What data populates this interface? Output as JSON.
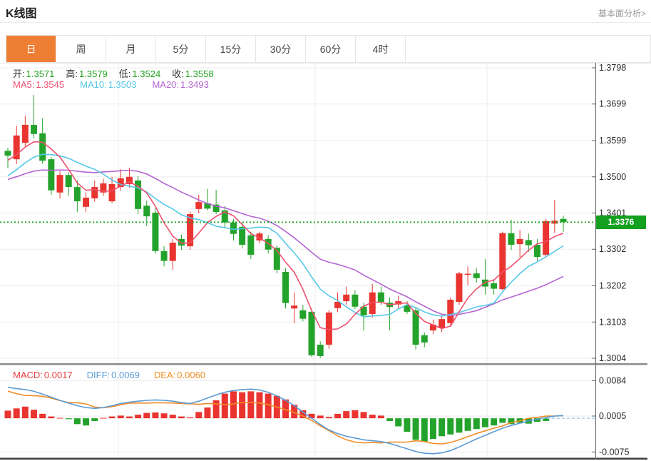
{
  "header": {
    "title": "K线图",
    "link": "基本面分析>"
  },
  "tabs": {
    "active_bg": "#ee7e33",
    "items": [
      {
        "name": "day",
        "label": "日",
        "active": true
      },
      {
        "name": "week",
        "label": "周",
        "active": false
      },
      {
        "name": "month",
        "label": "月",
        "active": false
      },
      {
        "name": "5min",
        "label": "5分",
        "active": false
      },
      {
        "name": "15min",
        "label": "15分",
        "active": false
      },
      {
        "name": "30min",
        "label": "30分",
        "active": false
      },
      {
        "name": "60min",
        "label": "60分",
        "active": false
      },
      {
        "name": "4hour",
        "label": "4时",
        "active": false
      }
    ]
  },
  "overlay": {
    "ohlc_value_color": "#21a21f",
    "ohlc": [
      {
        "label": "开:",
        "value": "1.3571"
      },
      {
        "label": "高:",
        "value": "1.3579"
      },
      {
        "label": "低:",
        "value": "1.3524"
      },
      {
        "label": "收:",
        "value": "1.3558"
      }
    ],
    "ma": [
      {
        "label": "MA5:",
        "value": "1.3545",
        "color": "#f0506e"
      },
      {
        "label": "MA10:",
        "value": "1.3503",
        "color": "#56c8e8"
      },
      {
        "label": "MA20:",
        "value": "1.3493",
        "color": "#b464d2"
      }
    ],
    "macd": [
      {
        "label": "MACD:",
        "value": "0.0017",
        "color": "#e84040"
      },
      {
        "label": "DIFF:",
        "value": "0.0069",
        "color": "#5b9bd5"
      },
      {
        "label": "DEA:",
        "value": "0.0060",
        "color": "#f08c28"
      }
    ]
  },
  "last_price": {
    "value": "1.3376",
    "bg": "#13a01f"
  },
  "chart_data": {
    "type": "candlestick+macd",
    "price_axis": {
      "ticks": [
        "1.3798",
        "1.3699",
        "1.3599",
        "1.3500",
        "1.3401",
        "1.3302",
        "1.3202",
        "1.3103",
        "1.3004"
      ]
    },
    "macd_axis": {
      "ticks": [
        "0.0084",
        "0.0005",
        "-0.0075"
      ]
    },
    "colors": {
      "up": "#e93430",
      "down": "#23a32b",
      "ma5": "#f0506e",
      "ma10": "#56c8e8",
      "ma20": "#b464d2",
      "diff": "#5b9bd5",
      "dea": "#f08c28",
      "price_line": "#2aa82a",
      "grid": "#ededed",
      "axis": "#666666",
      "zero_dash": "#a9cfe8"
    },
    "candles": [
      [
        1.3571,
        1.3579,
        1.3524,
        1.3558
      ],
      [
        1.3548,
        1.364,
        1.3535,
        1.3613
      ],
      [
        1.3593,
        1.3667,
        1.3583,
        1.3642
      ],
      [
        1.3642,
        1.3724,
        1.3605,
        1.3617
      ],
      [
        1.3619,
        1.366,
        1.3535,
        1.3544
      ],
      [
        1.3548,
        1.3554,
        1.3451,
        1.3463
      ],
      [
        1.3457,
        1.3515,
        1.3441,
        1.3505
      ],
      [
        1.3505,
        1.3512,
        1.3448,
        1.3472
      ],
      [
        1.3472,
        1.349,
        1.3404,
        1.3433
      ],
      [
        1.3418,
        1.3457,
        1.3404,
        1.3443
      ],
      [
        1.3441,
        1.349,
        1.3432,
        1.3472
      ],
      [
        1.3457,
        1.3495,
        1.3448,
        1.3482
      ],
      [
        1.3433,
        1.35,
        1.3428,
        1.348
      ],
      [
        1.3472,
        1.3521,
        1.3462,
        1.3496
      ],
      [
        1.348,
        1.3525,
        1.347,
        1.35
      ],
      [
        1.349,
        1.3502,
        1.3398,
        1.3412
      ],
      [
        1.3421,
        1.3435,
        1.3365,
        1.3392
      ],
      [
        1.3402,
        1.3415,
        1.329,
        1.3297
      ],
      [
        1.3297,
        1.331,
        1.3255,
        1.327
      ],
      [
        1.327,
        1.333,
        1.3246,
        1.332
      ],
      [
        1.333,
        1.3342,
        1.33,
        1.3312
      ],
      [
        1.331,
        1.3405,
        1.33,
        1.3398
      ],
      [
        1.3412,
        1.3451,
        1.34,
        1.3431
      ],
      [
        1.3428,
        1.3467,
        1.3408,
        1.3413
      ],
      [
        1.3424,
        1.3464,
        1.3398,
        1.3404
      ],
      [
        1.3408,
        1.342,
        1.3359,
        1.3375
      ],
      [
        1.3375,
        1.3385,
        1.3326,
        1.3344
      ],
      [
        1.3363,
        1.3375,
        1.3305,
        1.3314
      ],
      [
        1.334,
        1.335,
        1.3275,
        1.3287
      ],
      [
        1.3326,
        1.335,
        1.3318,
        1.3345
      ],
      [
        1.333,
        1.334,
        1.329,
        1.3301
      ],
      [
        1.3306,
        1.3312,
        1.3236,
        1.3246
      ],
      [
        1.324,
        1.325,
        1.314,
        1.3155
      ],
      [
        1.314,
        1.3184,
        1.31,
        1.3148
      ],
      [
        1.3135,
        1.315,
        1.3105,
        1.3112
      ],
      [
        1.3131,
        1.314,
        1.3008,
        1.3012
      ],
      [
        1.3041,
        1.305,
        1.3005,
        1.301
      ],
      [
        1.3041,
        1.3135,
        1.303,
        1.3129
      ],
      [
        1.3141,
        1.3184,
        1.313,
        1.3158
      ],
      [
        1.316,
        1.32,
        1.315,
        1.3178
      ],
      [
        1.3178,
        1.319,
        1.3138,
        1.3145
      ],
      [
        1.3145,
        1.3155,
        1.308,
        1.3121
      ],
      [
        1.3125,
        1.3207,
        1.3115,
        1.3184
      ],
      [
        1.3184,
        1.32,
        1.315,
        1.3158
      ],
      [
        1.3156,
        1.317,
        1.308,
        1.3144
      ],
      [
        1.3151,
        1.3175,
        1.314,
        1.316
      ],
      [
        1.3149,
        1.316,
        1.3125,
        1.3131
      ],
      [
        1.3135,
        1.3145,
        1.3028,
        1.3041
      ],
      [
        1.3067,
        1.3075,
        1.3034,
        1.3047
      ],
      [
        1.308,
        1.311,
        1.307,
        1.3096
      ],
      [
        1.3086,
        1.312,
        1.3075,
        1.3111
      ],
      [
        1.31,
        1.317,
        1.309,
        1.3164
      ],
      [
        1.3158,
        1.324,
        1.315,
        1.3236
      ],
      [
        1.3232,
        1.3255,
        1.3203,
        1.3235
      ],
      [
        1.3236,
        1.325,
        1.321,
        1.3223
      ],
      [
        1.3219,
        1.3275,
        1.3178,
        1.32
      ],
      [
        1.3209,
        1.322,
        1.3178,
        1.3194
      ],
      [
        1.3193,
        1.335,
        1.319,
        1.3346
      ],
      [
        1.3346,
        1.3383,
        1.33,
        1.3314
      ],
      [
        1.3316,
        1.3355,
        1.3281,
        1.333
      ],
      [
        1.3327,
        1.3345,
        1.3295,
        1.3313
      ],
      [
        1.3314,
        1.333,
        1.327,
        1.3281
      ],
      [
        1.3287,
        1.3385,
        1.3282,
        1.3379
      ],
      [
        1.3372,
        1.3437,
        1.3346,
        1.338
      ],
      [
        1.3385,
        1.3394,
        1.335,
        1.3376
      ]
    ],
    "ma_seed": [
      1.347,
      1.3475,
      1.3478,
      1.3481,
      1.3483,
      1.3484,
      1.3485,
      1.3487,
      1.3493,
      1.3494,
      1.3448,
      1.3455,
      1.3461,
      1.3467,
      1.3473,
      1.3536,
      1.354,
      1.3544,
      1.3548
    ],
    "macd": {
      "hist": [
        0.0017,
        0.0022,
        0.0026,
        0.0019,
        0.001,
        0.0004,
        0.0001,
        -0.0002,
        -0.0013,
        -0.0016,
        -0.0006,
        0.0001,
        0.0004,
        0.0006,
        0.0004,
        0.0008,
        0.0012,
        0.0013,
        0.0011,
        0.0008,
        0.0004,
        0.0002,
        0.0014,
        0.0024,
        0.004,
        0.0055,
        0.006,
        0.0058,
        0.006,
        0.0058,
        0.0055,
        0.005,
        0.0042,
        0.003,
        0.0018,
        0.001,
        0.0006,
        0.0003,
        0.001,
        0.0016,
        0.0018,
        0.0014,
        0.0008,
        0.0006,
        -0.0006,
        -0.0018,
        -0.003,
        -0.0048,
        -0.0052,
        -0.0046,
        -0.004,
        -0.0036,
        -0.0032,
        -0.0028,
        -0.0024,
        -0.002,
        -0.0016,
        -0.001,
        -0.0013,
        -0.001,
        -0.0012,
        -0.0008,
        -0.0006,
        0.0,
        0.0
      ],
      "diff": [
        0.0069,
        0.0066,
        0.0064,
        0.006,
        0.0054,
        0.0047,
        0.004,
        0.0034,
        0.0028,
        0.0024,
        0.0022,
        0.0024,
        0.0028,
        0.0033,
        0.0036,
        0.0038,
        0.004,
        0.0041,
        0.004,
        0.0038,
        0.0035,
        0.0033,
        0.0038,
        0.0045,
        0.0052,
        0.0058,
        0.0062,
        0.0064,
        0.0065,
        0.0063,
        0.0058,
        0.005,
        0.004,
        0.0028,
        0.0014,
        0.0,
        -0.0014,
        -0.0026,
        -0.0034,
        -0.004,
        -0.0044,
        -0.0048,
        -0.005,
        -0.0052,
        -0.0056,
        -0.0062,
        -0.0068,
        -0.0074,
        -0.0078,
        -0.0079,
        -0.0077,
        -0.0072,
        -0.0064,
        -0.0055,
        -0.0046,
        -0.0038,
        -0.003,
        -0.0022,
        -0.0016,
        -0.0011,
        -0.0006,
        -0.0002,
        0.0002,
        0.0005,
        0.0006
      ]
    }
  }
}
